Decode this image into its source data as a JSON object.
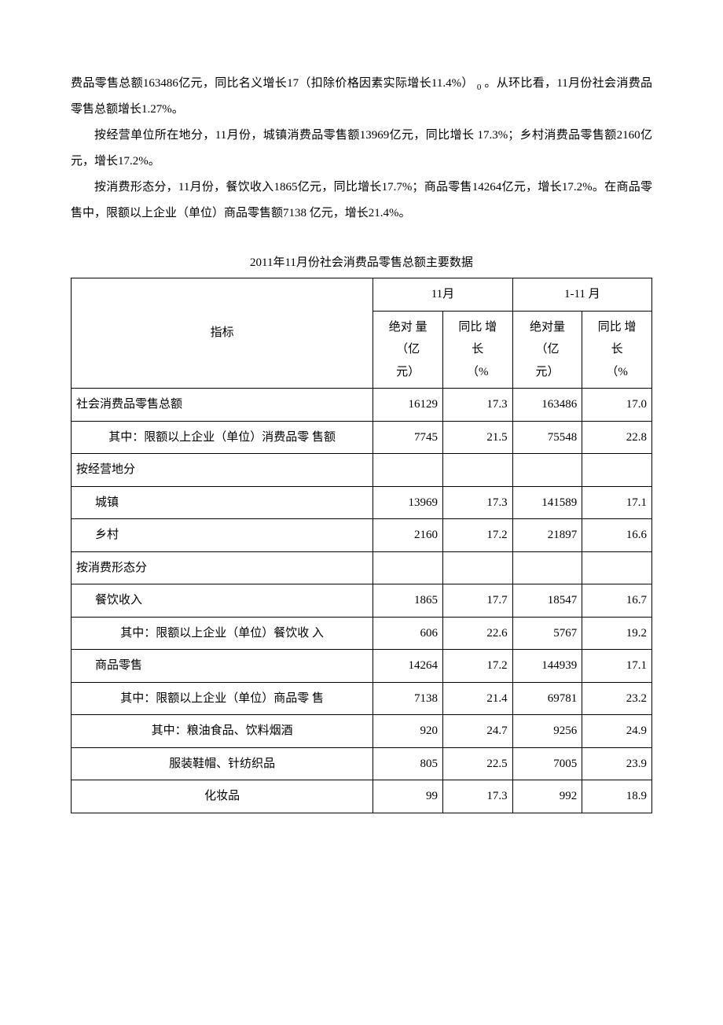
{
  "paragraphs": {
    "p1a": "费品零售总额163486亿元，同比名义增长17（扣除价格因素实际增长11.4%）",
    "p1b": "。从环比看，11月份社会消费品零售总额增长1.27%。",
    "p2": "按经营单位所在地分，11月份，城镇消费品零售额13969亿元，同比增长 17.3%；乡村消费品零售额2160亿元，增长17.2%。",
    "p3": "按消费形态分，11月份，餐饮收入1865亿元，同比增长17.7%；商品零售14264亿元，增长17.2%。在商品零售中，限额以上企业（单位）商品零售额7138 亿元，增长21.4%。"
  },
  "table": {
    "title": "2011年11月份社会消费品零售总额主要数据",
    "header": {
      "indicator": "指标",
      "period1": "11月",
      "period2": "1-11 月",
      "abs_line1": "绝对 量",
      "abs_line2": "（亿",
      "abs_line3": "元）",
      "abs2_line1": "绝对量",
      "abs2_line2": "（亿",
      "abs2_line3": "元）",
      "yoy_line1": "同比 增",
      "yoy_line2": "长",
      "yoy_line3": "（%",
      "yoy2_line1": "同比 增",
      "yoy2_line2": "长",
      "yoy2_line3": "（%"
    },
    "rows": [
      {
        "label": "社会消费品零售总额",
        "indent": 0,
        "v1": "16129",
        "v2": "17.3",
        "v3": "163486",
        "v4": "17.0"
      },
      {
        "label": "其中：限额以上企业（单位）消费品零 售额",
        "indent": 2,
        "v1": "7745",
        "v2": "21.5",
        "v3": "75548",
        "v4": "22.8",
        "center": true
      },
      {
        "label": "按经营地分",
        "indent": 0,
        "v1": "",
        "v2": "",
        "v3": "",
        "v4": ""
      },
      {
        "label": "城镇",
        "indent": 1,
        "v1": "13969",
        "v2": "17.3",
        "v3": "141589",
        "v4": "17.1"
      },
      {
        "label": "乡村",
        "indent": 1,
        "v1": "2160",
        "v2": "17.2",
        "v3": "21897",
        "v4": "16.6"
      },
      {
        "label": "按消费形态分",
        "indent": 0,
        "v1": "",
        "v2": "",
        "v3": "",
        "v4": ""
      },
      {
        "label": "餐饮收入",
        "indent": 1,
        "v1": "1865",
        "v2": "17.7",
        "v3": "18547",
        "v4": "16.7"
      },
      {
        "label": "其中：限额以上企业（单位）餐饮收 入",
        "indent": 2,
        "v1": "606",
        "v2": "22.6",
        "v3": "5767",
        "v4": "19.2",
        "center": true
      },
      {
        "label": "商品零售",
        "indent": 1,
        "v1": "14264",
        "v2": "17.2",
        "v3": "144939",
        "v4": "17.1"
      },
      {
        "label": "其中：限额以上企业（单位）商品零 售",
        "indent": 2,
        "v1": "7138",
        "v2": "21.4",
        "v3": "69781",
        "v4": "23.2",
        "center": true
      },
      {
        "label": "其中：粮油食品、饮料烟酒",
        "indent": 2,
        "v1": "920",
        "v2": "24.7",
        "v3": "9256",
        "v4": "24.9",
        "center": true
      },
      {
        "label": "服装鞋帽、针纺织品",
        "indent": 3,
        "v1": "805",
        "v2": "22.5",
        "v3": "7005",
        "v4": "23.9",
        "center": true
      },
      {
        "label": "化妆品",
        "indent": 3,
        "v1": "99",
        "v2": "17.3",
        "v3": "992",
        "v4": "18.9",
        "center": true
      }
    ]
  },
  "style": {
    "body_bg": "#ffffff",
    "text_color": "#000000",
    "border_color": "#000000",
    "font_family": "SimSun",
    "base_fontsize": 15
  }
}
